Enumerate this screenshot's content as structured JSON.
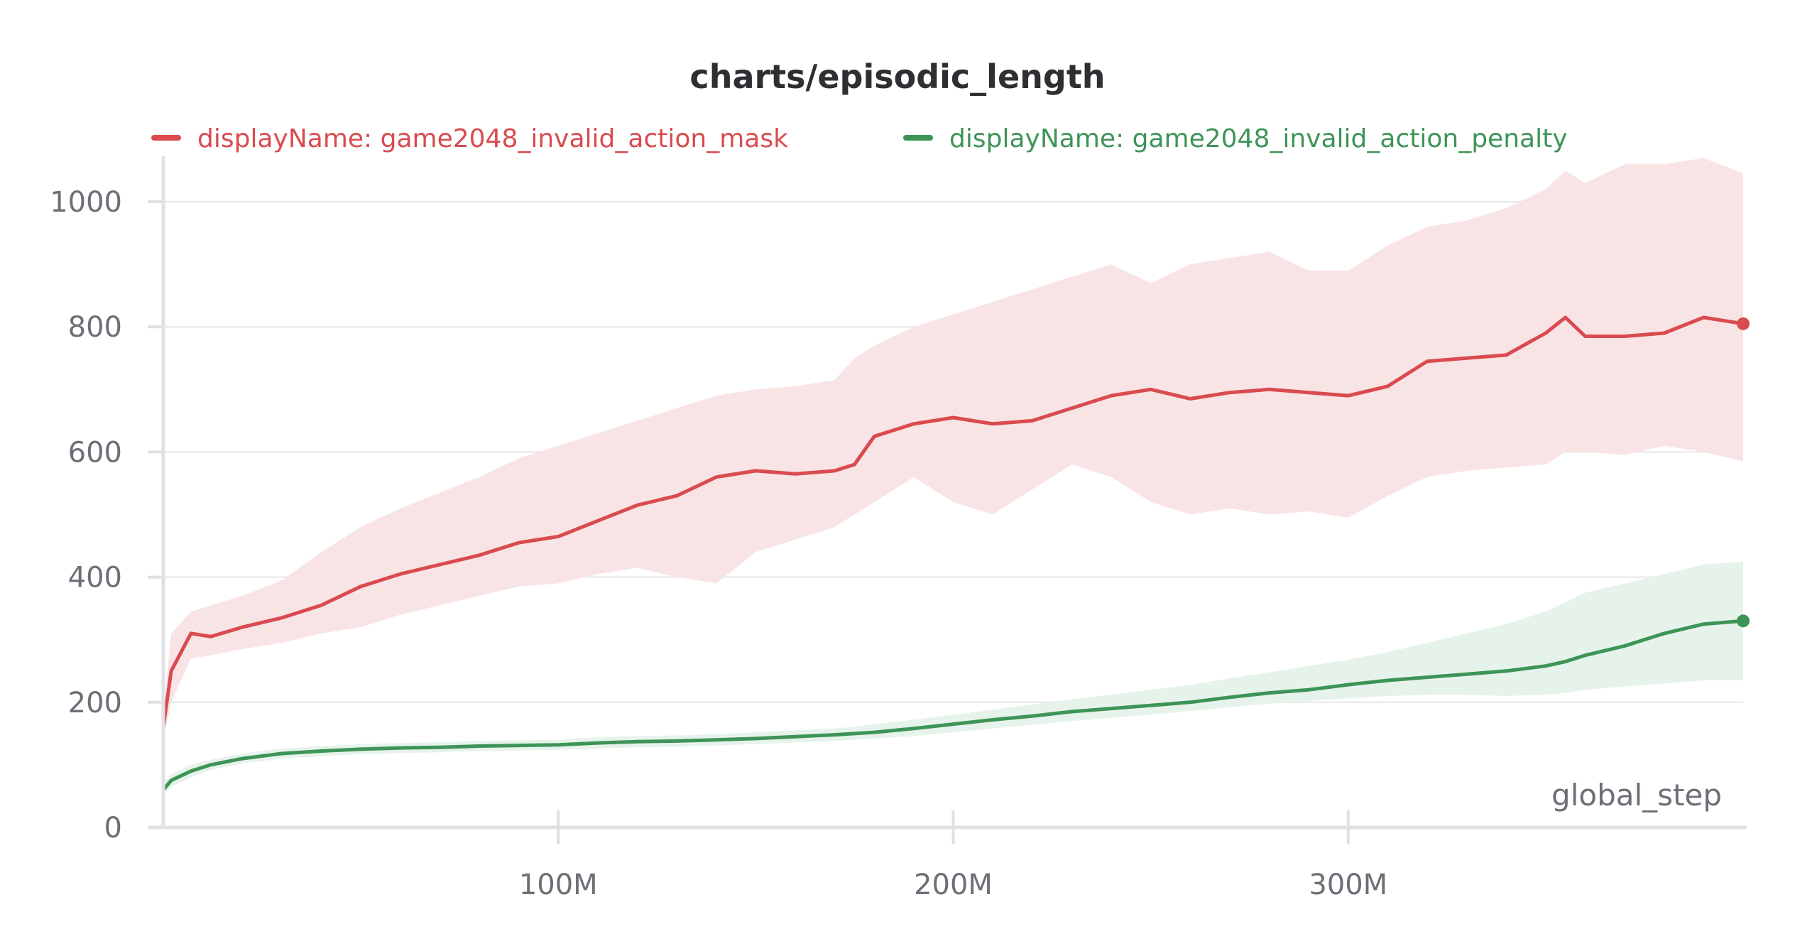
{
  "chart_data": {
    "type": "line",
    "title": "charts/episodic_length",
    "xlabel": "global_step",
    "ylabel": "",
    "xlim": [
      0,
      400000000
    ],
    "ylim": [
      0,
      1050
    ],
    "x_ticks": [
      {
        "value": 100000000,
        "label": "100M"
      },
      {
        "value": 200000000,
        "label": "200M"
      },
      {
        "value": 300000000,
        "label": "300M"
      }
    ],
    "y_ticks": [
      {
        "value": 0,
        "label": "0"
      },
      {
        "value": 200,
        "label": "200"
      },
      {
        "value": 400,
        "label": "400"
      },
      {
        "value": 600,
        "label": "600"
      },
      {
        "value": 800,
        "label": "800"
      },
      {
        "value": 1000,
        "label": "1000"
      }
    ],
    "grid": true,
    "legend_position": "top",
    "series": [
      {
        "name": "displayName: game2048_invalid_action_mask",
        "color": "#d94b4f",
        "band_color": "#f9e4e5",
        "x": [
          0,
          2000000,
          7000000,
          12000000,
          20000000,
          30000000,
          40000000,
          50000000,
          60000000,
          70000000,
          80000000,
          90000000,
          100000000,
          110000000,
          120000000,
          130000000,
          140000000,
          150000000,
          160000000,
          170000000,
          175000000,
          180000000,
          190000000,
          200000000,
          210000000,
          220000000,
          230000000,
          240000000,
          250000000,
          260000000,
          270000000,
          280000000,
          290000000,
          300000000,
          310000000,
          320000000,
          330000000,
          340000000,
          350000000,
          355000000,
          360000000,
          370000000,
          380000000,
          390000000,
          400000000
        ],
        "values": [
          160,
          250,
          310,
          305,
          320,
          335,
          355,
          385,
          405,
          420,
          435,
          455,
          465,
          490,
          515,
          530,
          560,
          570,
          565,
          570,
          580,
          625,
          645,
          655,
          645,
          650,
          670,
          690,
          700,
          685,
          695,
          700,
          695,
          690,
          705,
          745,
          750,
          755,
          790,
          815,
          785,
          785,
          790,
          815,
          805
        ],
        "band_lower": [
          140,
          200,
          270,
          275,
          285,
          295,
          310,
          320,
          340,
          355,
          370,
          385,
          390,
          405,
          415,
          400,
          390,
          440,
          460,
          480,
          500,
          520,
          560,
          520,
          500,
          540,
          580,
          560,
          520,
          500,
          510,
          500,
          505,
          495,
          530,
          560,
          570,
          575,
          580,
          600,
          600,
          595,
          610,
          600,
          585
        ],
        "band_upper": [
          180,
          310,
          345,
          355,
          370,
          395,
          440,
          480,
          510,
          535,
          560,
          590,
          610,
          630,
          650,
          670,
          690,
          700,
          705,
          715,
          750,
          770,
          800,
          820,
          840,
          860,
          880,
          900,
          870,
          900,
          910,
          920,
          890,
          890,
          930,
          960,
          970,
          990,
          1020,
          1050,
          1030,
          1060,
          1060,
          1070,
          1045
        ]
      },
      {
        "name": "displayName: game2048_invalid_action_penalty",
        "color": "#3e9457",
        "band_color": "#e6f3ea",
        "x": [
          0,
          2000000,
          7000000,
          12000000,
          20000000,
          30000000,
          40000000,
          50000000,
          60000000,
          70000000,
          80000000,
          90000000,
          100000000,
          110000000,
          120000000,
          130000000,
          140000000,
          150000000,
          160000000,
          170000000,
          175000000,
          180000000,
          190000000,
          200000000,
          210000000,
          220000000,
          230000000,
          240000000,
          250000000,
          260000000,
          270000000,
          280000000,
          290000000,
          300000000,
          310000000,
          320000000,
          330000000,
          340000000,
          350000000,
          355000000,
          360000000,
          370000000,
          380000000,
          390000000,
          400000000
        ],
        "values": [
          60,
          75,
          90,
          100,
          110,
          118,
          122,
          125,
          127,
          128,
          130,
          131,
          132,
          135,
          137,
          138,
          140,
          142,
          145,
          148,
          150,
          152,
          158,
          165,
          172,
          178,
          185,
          190,
          195,
          200,
          208,
          215,
          220,
          228,
          235,
          240,
          245,
          250,
          258,
          265,
          275,
          290,
          310,
          325,
          330
        ],
        "band_lower": [
          50,
          65,
          80,
          92,
          102,
          110,
          114,
          117,
          119,
          120,
          122,
          123,
          124,
          126,
          128,
          129,
          131,
          133,
          136,
          138,
          140,
          142,
          146,
          152,
          158,
          164,
          170,
          175,
          180,
          186,
          192,
          198,
          202,
          206,
          210,
          212,
          212,
          210,
          212,
          215,
          220,
          225,
          230,
          235,
          235
        ],
        "band_upper": [
          70,
          85,
          100,
          108,
          118,
          126,
          130,
          133,
          135,
          136,
          138,
          139,
          140,
          144,
          146,
          147,
          149,
          152,
          155,
          158,
          161,
          165,
          172,
          180,
          188,
          196,
          205,
          212,
          220,
          228,
          238,
          248,
          258,
          268,
          280,
          295,
          310,
          325,
          345,
          360,
          375,
          390,
          405,
          420,
          425
        ]
      }
    ]
  }
}
